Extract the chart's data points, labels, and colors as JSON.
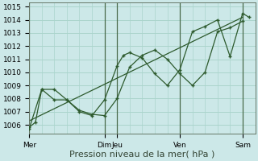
{
  "xlabel": "Pression niveau de la mer( hPa )",
  "bg_color": "#cce8e8",
  "grid_color": "#aad4cc",
  "line_color": "#2d5a2d",
  "vline_color": "#4a6a4a",
  "ylim": [
    1005.3,
    1015.3
  ],
  "yticks": [
    1006,
    1007,
    1008,
    1009,
    1010,
    1011,
    1012,
    1013,
    1014,
    1015
  ],
  "xlim": [
    0,
    18
  ],
  "xtick_positions": [
    0,
    6,
    7,
    12,
    17
  ],
  "xtick_labels": [
    "Mer",
    "Dim",
    "Jeu",
    "Ven",
    "Sam"
  ],
  "vline_positions": [
    0,
    6,
    7,
    12,
    17
  ],
  "trend_x": [
    0,
    17
  ],
  "trend_y": [
    1006.3,
    1014.2
  ],
  "series1_x": [
    0,
    1,
    2,
    3,
    4,
    5,
    6,
    7,
    8,
    9,
    10,
    11,
    12,
    13,
    14,
    15,
    16,
    17
  ],
  "series1_y": [
    1005.7,
    1008.7,
    1008.7,
    1007.9,
    1007.1,
    1006.8,
    1006.7,
    1008.0,
    1010.4,
    1011.3,
    1011.7,
    1011.0,
    1009.9,
    1009.0,
    1010.0,
    1013.1,
    1013.4,
    1013.9
  ],
  "series2_x": [
    0,
    0.5,
    1,
    2,
    3,
    4,
    5,
    6,
    7,
    7.5,
    8,
    9,
    10,
    11,
    12,
    13,
    14,
    15,
    16,
    17,
    17.5
  ],
  "series2_y": [
    1005.8,
    1006.2,
    1008.7,
    1007.9,
    1007.9,
    1007.0,
    1006.7,
    1007.9,
    1010.5,
    1011.3,
    1011.5,
    1011.1,
    1009.9,
    1009.0,
    1010.2,
    1013.1,
    1013.5,
    1014.0,
    1011.2,
    1014.5,
    1014.2
  ],
  "xlabel_fontsize": 8,
  "tick_fontsize": 6.5
}
